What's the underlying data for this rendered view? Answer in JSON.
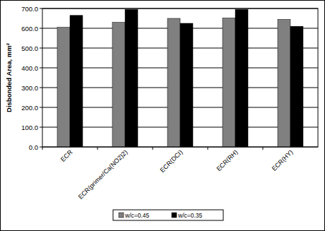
{
  "chart_data": {
    "type": "bar",
    "y_label": "Disbonded Area, mm²",
    "categories": [
      "ECR",
      "ECR(primer/Ca(NO2)2)",
      "ECR(DCI)",
      "ECR(RH)",
      "ECR(HY)"
    ],
    "series": [
      {
        "name": "w/c=0.45",
        "color": "#808080",
        "values": [
          605,
          630,
          650,
          652,
          645
        ]
      },
      {
        "name": "w/c=0.35",
        "color": "#000000",
        "values": [
          665,
          695,
          625,
          695,
          610
        ]
      }
    ],
    "ylim": [
      0,
      700
    ],
    "yticks": [
      {
        "value": 0,
        "label": "0.0"
      },
      {
        "value": 100,
        "label": "100.0"
      },
      {
        "value": 200,
        "label": "200.0"
      },
      {
        "value": 300,
        "label": "300.0"
      },
      {
        "value": 400,
        "label": "400.0"
      },
      {
        "value": 500,
        "label": "500.0"
      },
      {
        "value": 600,
        "label": "600.0"
      },
      {
        "value": 700,
        "label": "700.0"
      }
    ],
    "grid": true,
    "legend": "bottom"
  }
}
